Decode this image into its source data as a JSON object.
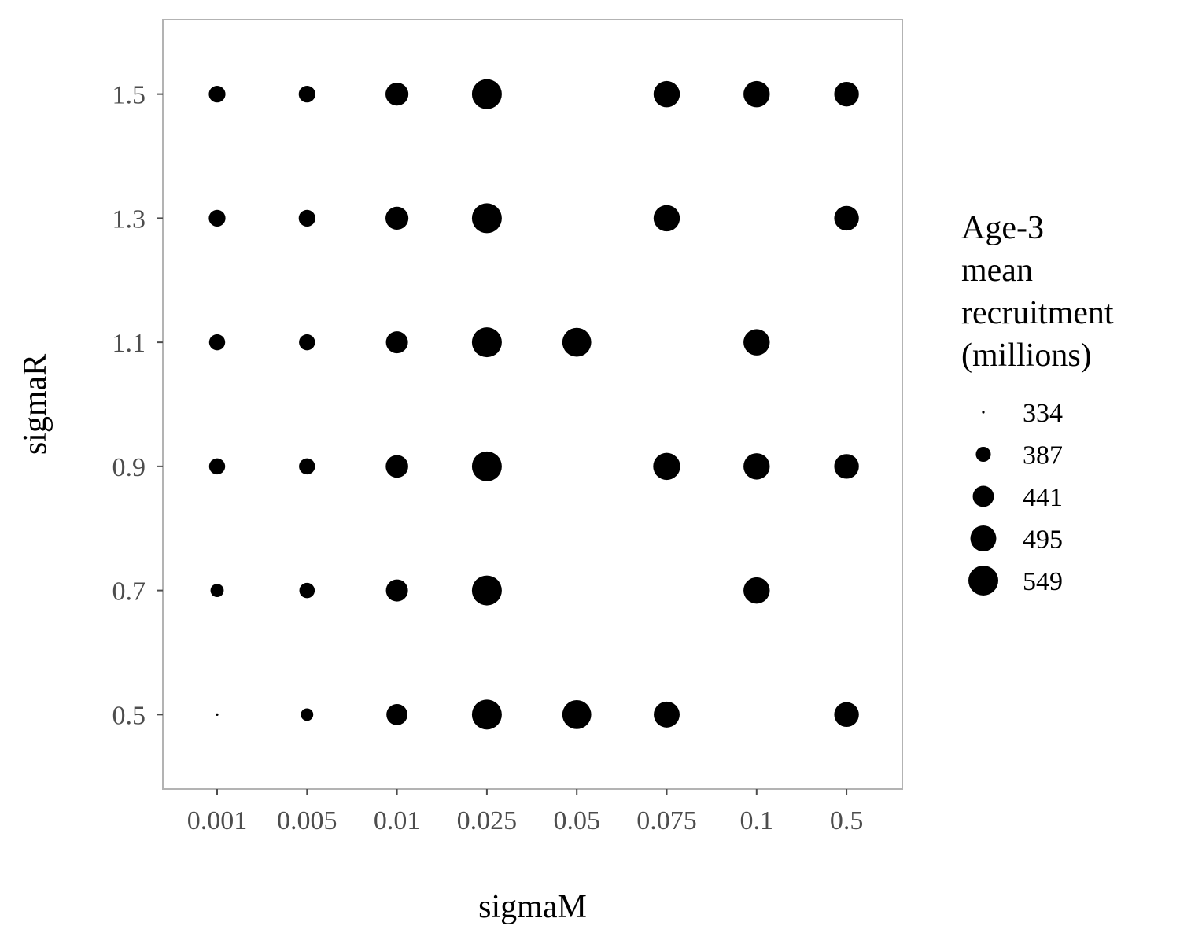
{
  "chart_data": {
    "type": "scatter",
    "xlabel": "sigmaM",
    "ylabel": "sigmaR",
    "x_categories": [
      "0.001",
      "0.005",
      "0.01",
      "0.025",
      "0.05",
      "0.075",
      "0.1",
      "0.5"
    ],
    "y_ticks": [
      "0.5",
      "0.7",
      "0.9",
      "1.1",
      "1.3",
      "1.5"
    ],
    "ylim": [
      0.38,
      1.62
    ],
    "grid": false,
    "legend": {
      "title_lines": [
        "Age-3",
        "mean",
        "recruitment",
        "(millions)"
      ],
      "placement": "right",
      "values": [
        334,
        387,
        441,
        495,
        549
      ]
    },
    "size_range": [
      334,
      549
    ],
    "points": [
      {
        "x": "0.001",
        "y": 1.5,
        "value": 400
      },
      {
        "x": "0.005",
        "y": 1.5,
        "value": 400
      },
      {
        "x": "0.01",
        "y": 1.5,
        "value": 460
      },
      {
        "x": "0.025",
        "y": 1.5,
        "value": 549
      },
      {
        "x": "0.075",
        "y": 1.5,
        "value": 500
      },
      {
        "x": "0.1",
        "y": 1.5,
        "value": 500
      },
      {
        "x": "0.5",
        "y": 1.5,
        "value": 480
      },
      {
        "x": "0.001",
        "y": 1.3,
        "value": 400
      },
      {
        "x": "0.005",
        "y": 1.3,
        "value": 400
      },
      {
        "x": "0.01",
        "y": 1.3,
        "value": 460
      },
      {
        "x": "0.025",
        "y": 1.3,
        "value": 549
      },
      {
        "x": "0.075",
        "y": 1.3,
        "value": 500
      },
      {
        "x": "0.5",
        "y": 1.3,
        "value": 480
      },
      {
        "x": "0.001",
        "y": 1.1,
        "value": 395
      },
      {
        "x": "0.005",
        "y": 1.1,
        "value": 395
      },
      {
        "x": "0.01",
        "y": 1.1,
        "value": 450
      },
      {
        "x": "0.025",
        "y": 1.1,
        "value": 549
      },
      {
        "x": "0.05",
        "y": 1.1,
        "value": 535
      },
      {
        "x": "0.1",
        "y": 1.1,
        "value": 500
      },
      {
        "x": "0.001",
        "y": 0.9,
        "value": 395
      },
      {
        "x": "0.005",
        "y": 0.9,
        "value": 395
      },
      {
        "x": "0.01",
        "y": 0.9,
        "value": 455
      },
      {
        "x": "0.025",
        "y": 0.9,
        "value": 549
      },
      {
        "x": "0.075",
        "y": 0.9,
        "value": 510
      },
      {
        "x": "0.1",
        "y": 0.9,
        "value": 500
      },
      {
        "x": "0.5",
        "y": 0.9,
        "value": 480
      },
      {
        "x": "0.001",
        "y": 0.7,
        "value": 375
      },
      {
        "x": "0.005",
        "y": 0.7,
        "value": 390
      },
      {
        "x": "0.01",
        "y": 0.7,
        "value": 450
      },
      {
        "x": "0.025",
        "y": 0.7,
        "value": 549
      },
      {
        "x": "0.1",
        "y": 0.7,
        "value": 500
      },
      {
        "x": "0.001",
        "y": 0.5,
        "value": 334
      },
      {
        "x": "0.005",
        "y": 0.5,
        "value": 370
      },
      {
        "x": "0.01",
        "y": 0.5,
        "value": 440
      },
      {
        "x": "0.025",
        "y": 0.5,
        "value": 549
      },
      {
        "x": "0.05",
        "y": 0.5,
        "value": 535
      },
      {
        "x": "0.075",
        "y": 0.5,
        "value": 495
      },
      {
        "x": "0.5",
        "y": 0.5,
        "value": 480
      }
    ],
    "colors": {
      "point": "#000000",
      "panel_border": "#b3b3b3",
      "tick": "#4d4d4d"
    }
  }
}
